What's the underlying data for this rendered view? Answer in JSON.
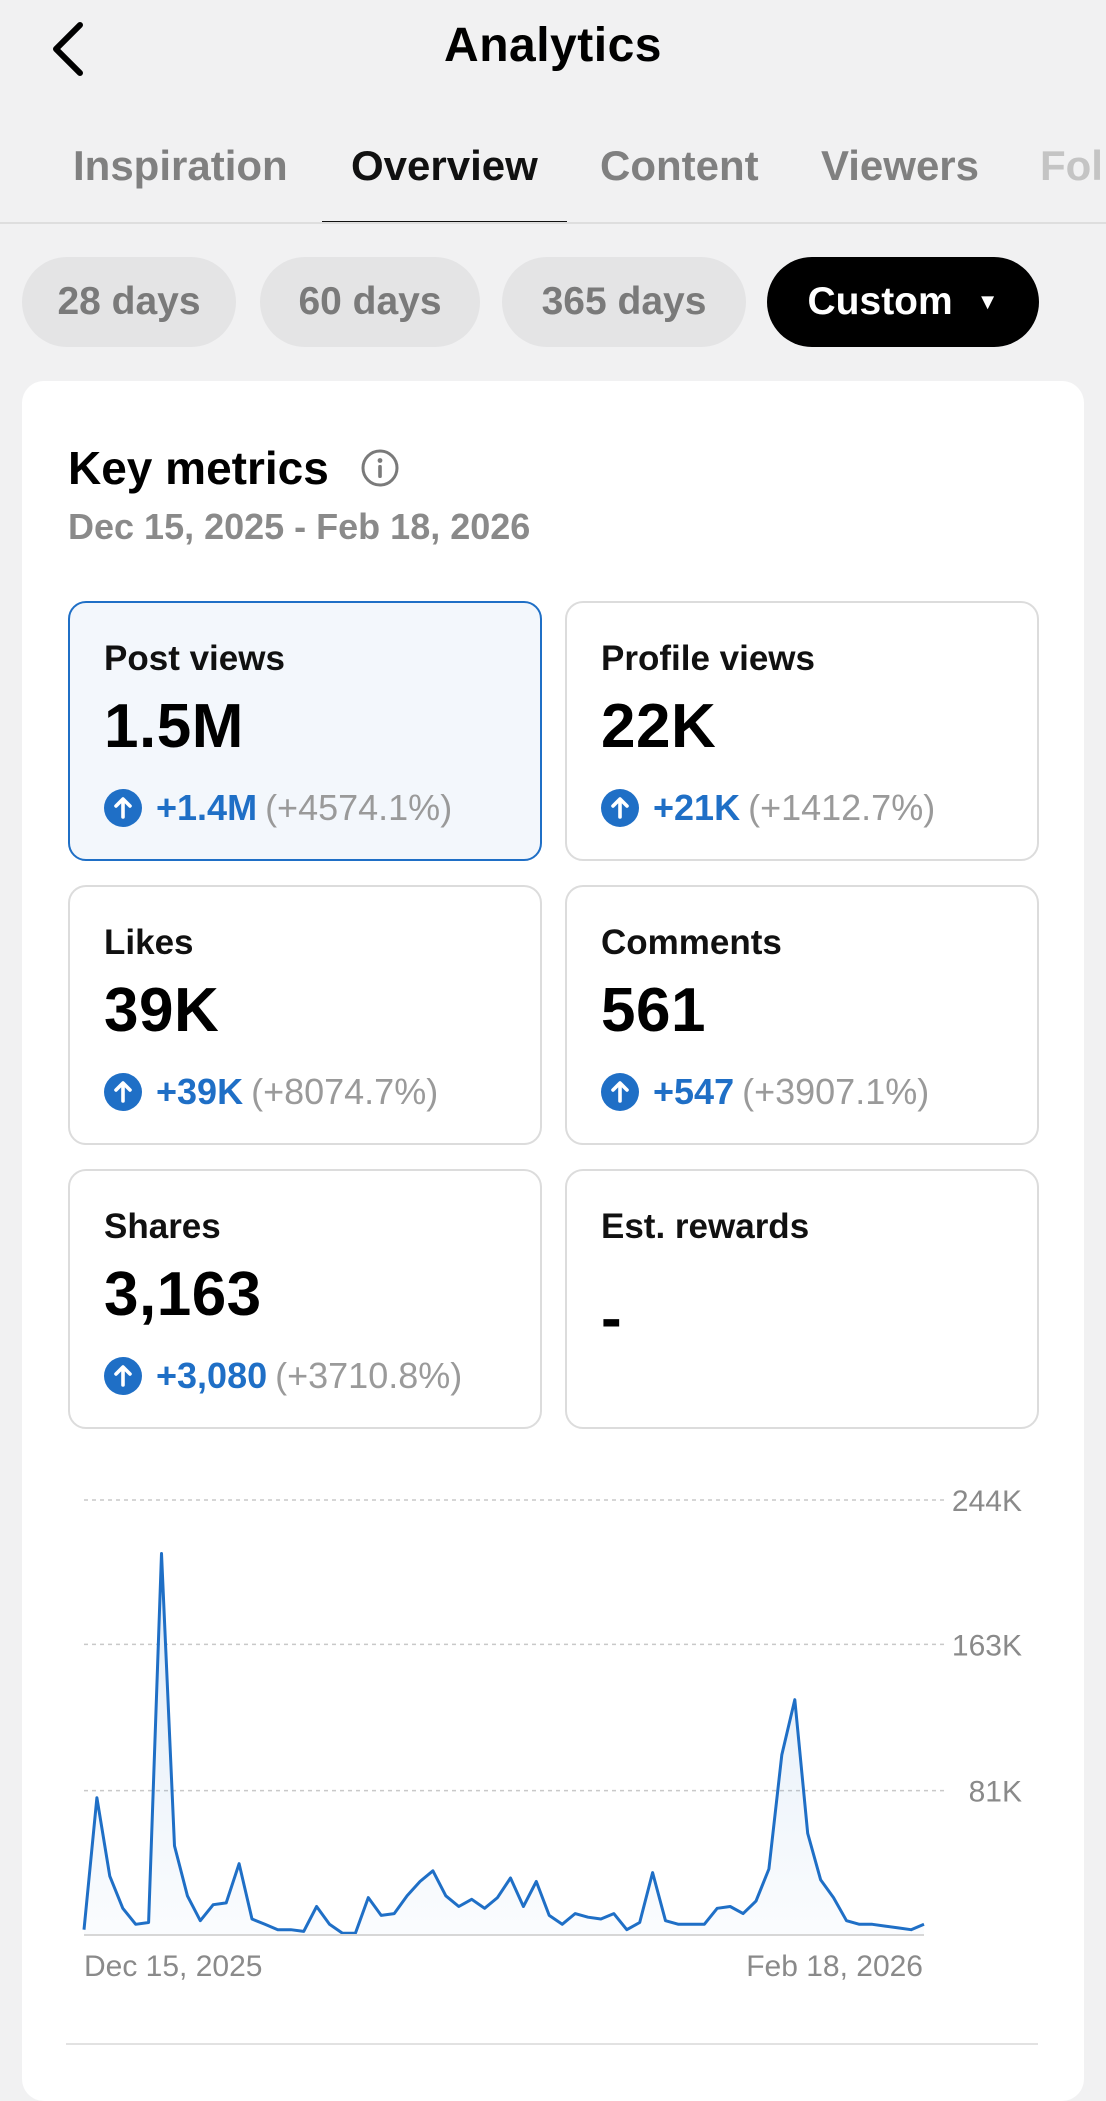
{
  "header": {
    "title": "Analytics",
    "back_icon": "chevron-left-icon"
  },
  "tabs": [
    {
      "label": "Inspiration",
      "active": false
    },
    {
      "label": "Overview",
      "active": true
    },
    {
      "label": "Content",
      "active": false
    },
    {
      "label": "Viewers",
      "active": false
    },
    {
      "label": "Fol",
      "active": false
    }
  ],
  "filters": [
    {
      "label": "28 days",
      "selected": false
    },
    {
      "label": "60 days",
      "selected": false
    },
    {
      "label": "365 days",
      "selected": false
    },
    {
      "label": "Custom",
      "selected": true
    }
  ],
  "key_metrics": {
    "title": "Key metrics",
    "date_range": "Dec 15, 2025 - Feb 18, 2026",
    "items": [
      {
        "label": "Post views",
        "value": "1.5M",
        "delta": "+1.4M",
        "pct": "(+4574.1%)",
        "selected": true
      },
      {
        "label": "Profile views",
        "value": "22K",
        "delta": "+21K",
        "pct": "(+1412.7%)",
        "selected": false
      },
      {
        "label": "Likes",
        "value": "39K",
        "delta": "+39K",
        "pct": "(+8074.7%)",
        "selected": false
      },
      {
        "label": "Comments",
        "value": "561",
        "delta": "+547",
        "pct": "(+3907.1%)",
        "selected": false
      },
      {
        "label": "Shares",
        "value": "3,163",
        "delta": "+3,080",
        "pct": "(+3710.8%)",
        "selected": false
      },
      {
        "label": "Est. rewards",
        "value": "-",
        "delta": "",
        "pct": "",
        "selected": false
      }
    ]
  },
  "colors": {
    "accent": "#1f6fc6",
    "muted": "#9a9a9a",
    "selected_bg": "#f3f7fc"
  },
  "chart_data": {
    "type": "area",
    "series": [
      {
        "name": "Post views",
        "values": [
          3,
          77,
          33,
          15,
          6,
          7,
          214,
          50,
          22,
          8,
          17,
          18,
          40,
          9,
          6,
          3,
          3,
          2,
          16,
          6,
          1,
          1,
          21,
          11,
          12,
          22,
          30,
          36,
          22,
          16,
          20,
          15,
          21,
          32,
          16,
          30,
          11,
          6,
          12,
          10,
          9,
          12,
          3,
          7,
          35,
          8,
          6,
          6,
          6,
          15,
          16,
          12,
          19,
          37,
          101,
          132,
          57,
          31,
          21,
          8,
          6,
          6,
          5,
          4,
          3,
          6
        ]
      }
    ],
    "x_start_label": "Dec 15, 2025",
    "x_end_label": "Feb 18, 2026",
    "y_ticks": [
      "81K",
      "163K",
      "244K"
    ],
    "y_tick_values": [
      81,
      163,
      244
    ],
    "ylim": [
      0,
      244
    ],
    "grid": true
  }
}
